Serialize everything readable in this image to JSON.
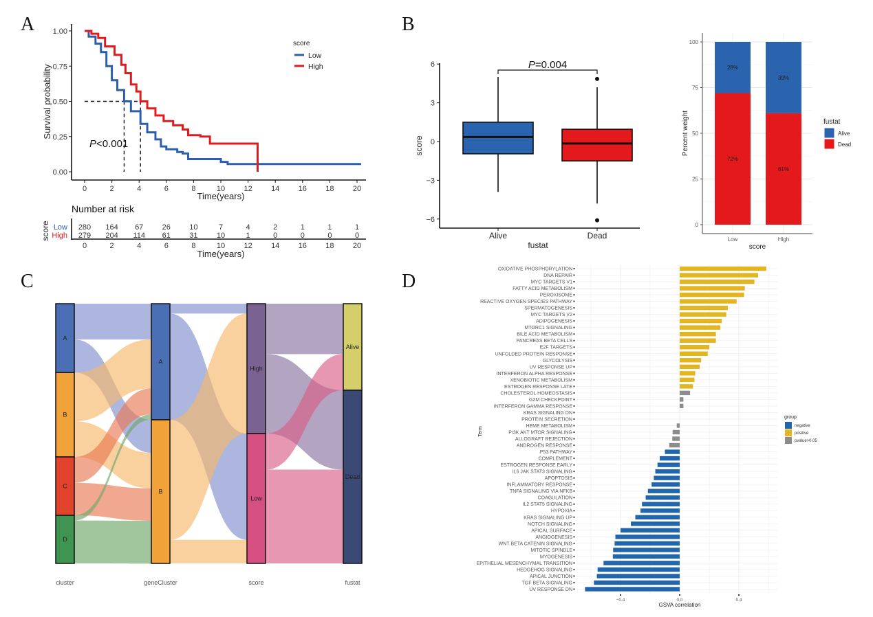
{
  "panels": {
    "a": "A",
    "b": "B",
    "c": "C",
    "d": "D"
  },
  "chart_data": [
    {
      "id": "km",
      "type": "line",
      "title": "",
      "xlabel": "Time(years)",
      "ylabel": "Survival probability",
      "xlim": [
        0,
        20
      ],
      "ylim": [
        0,
        1
      ],
      "xticks": [
        "0",
        "2",
        "4",
        "6",
        "8",
        "10",
        "12",
        "14",
        "16",
        "18",
        "20"
      ],
      "yticks": [
        "0.00",
        "0.25",
        "0.50",
        "0.75",
        "1.00"
      ],
      "legend": {
        "title": "score",
        "position": "top-right",
        "entries": [
          {
            "name": "Low",
            "color": "#2B5FAE"
          },
          {
            "name": "High",
            "color": "#E31A1C"
          }
        ]
      },
      "annotation": {
        "p_prefix": "P",
        "p_rest": "<0.001"
      },
      "median_survival": {
        "Low": 2.9,
        "High": 4.1
      },
      "series": [
        {
          "name": "Low",
          "color": "#2B5FAE",
          "x": [
            0,
            0.3,
            0.8,
            1.2,
            1.6,
            2.0,
            2.4,
            2.9,
            3.4,
            4.1,
            4.6,
            5.2,
            5.6,
            6.0,
            6.8,
            7.2,
            7.6,
            8.0,
            9.5,
            10.0,
            10.5,
            20.3
          ],
          "y": [
            1.0,
            0.96,
            0.91,
            0.85,
            0.75,
            0.65,
            0.58,
            0.5,
            0.43,
            0.34,
            0.28,
            0.23,
            0.18,
            0.16,
            0.14,
            0.13,
            0.09,
            0.09,
            0.09,
            0.07,
            0.055,
            0.055
          ]
        },
        {
          "name": "High",
          "color": "#E31A1C",
          "x": [
            0,
            0.5,
            1.0,
            1.5,
            2.2,
            2.7,
            3.0,
            3.4,
            3.8,
            4.1,
            4.6,
            5.2,
            5.8,
            6.5,
            7.2,
            7.6,
            8.5,
            9.2,
            12.7,
            12.7
          ],
          "y": [
            1.0,
            0.98,
            0.95,
            0.89,
            0.83,
            0.76,
            0.7,
            0.62,
            0.57,
            0.5,
            0.45,
            0.4,
            0.36,
            0.33,
            0.3,
            0.26,
            0.25,
            0.2,
            0.2,
            0.0
          ]
        }
      ]
    },
    {
      "id": "risk_table",
      "type": "table",
      "title": "Number at risk",
      "ylabel": "score",
      "xlabel": "Time(years)",
      "columns": [
        "0",
        "2",
        "4",
        "6",
        "8",
        "10",
        "12",
        "14",
        "16",
        "18",
        "20"
      ],
      "rows": [
        {
          "name": "Low",
          "color": "#2B5FAE",
          "values": [
            "280",
            "164",
            "67",
            "26",
            "10",
            "7",
            "4",
            "2",
            "1",
            "1",
            "1"
          ]
        },
        {
          "name": "High",
          "color": "#E31A1C",
          "values": [
            "279",
            "204",
            "114",
            "61",
            "31",
            "10",
            "1",
            "0",
            "0",
            "0",
            "0"
          ]
        }
      ]
    },
    {
      "id": "boxplot",
      "type": "bar",
      "subtype": "boxplot",
      "xlabel": "fustat",
      "ylabel": "score",
      "ylim": [
        -7,
        6.5
      ],
      "yticks": [
        "-6",
        "-3",
        "0",
        "3",
        "6"
      ],
      "categories": [
        "Alive",
        "Dead"
      ],
      "annotation": {
        "p_prefix": "P",
        "p_rest": "=0.004"
      },
      "boxes": [
        {
          "name": "Alive",
          "color": "#2B64AE",
          "whisker_low": -3.9,
          "q1": -0.95,
          "median": 0.35,
          "q3": 1.5,
          "whisker_high": 5.0,
          "outliers": []
        },
        {
          "name": "Dead",
          "color": "#E3191C",
          "whisker_low": -4.8,
          "q1": -1.5,
          "median": -0.15,
          "q3": 0.95,
          "whisker_high": 4.2,
          "outliers": [
            4.85,
            -6.1
          ]
        }
      ]
    },
    {
      "id": "stacked",
      "type": "bar",
      "subtype": "stacked-percent",
      "xlabel": "score",
      "ylabel": "Percent weight",
      "ylim": [
        0,
        100
      ],
      "yticks": [
        "0",
        "25",
        "50",
        "75",
        "100"
      ],
      "categories": [
        "Low",
        "High"
      ],
      "legend": {
        "title": "fustat",
        "position": "right"
      },
      "series": [
        {
          "name": "Dead",
          "color": "#E3191C",
          "values": [
            72,
            61
          ],
          "labels": [
            "72%",
            "61%"
          ]
        },
        {
          "name": "Alive",
          "color": "#2B64AE",
          "values": [
            28,
            39
          ],
          "labels": [
            "28%",
            "39%"
          ]
        }
      ]
    },
    {
      "id": "sankey",
      "type": "sankey",
      "axes": [
        "cluster",
        "geneCluster",
        "score",
        "fustat"
      ],
      "nodes": [
        {
          "axis": 0,
          "name": "A",
          "color": "#4A6FB5",
          "value": 0.265
        },
        {
          "axis": 0,
          "name": "B",
          "color": "#F1A33A",
          "value": 0.325
        },
        {
          "axis": 0,
          "name": "C",
          "color": "#E2432C",
          "value": 0.225
        },
        {
          "axis": 0,
          "name": "D",
          "color": "#3E9450",
          "value": 0.185
        },
        {
          "axis": 1,
          "name": "A",
          "color": "#4A6FB5",
          "value": 0.447
        },
        {
          "axis": 1,
          "name": "B",
          "color": "#F1A33A",
          "value": 0.553
        },
        {
          "axis": 2,
          "name": "High",
          "color": "#7A6393",
          "value": 0.5
        },
        {
          "axis": 2,
          "name": "Low",
          "color": "#D54F80",
          "value": 0.5
        },
        {
          "axis": 3,
          "name": "Alive",
          "color": "#D4CF6A",
          "value": 0.333
        },
        {
          "axis": 3,
          "name": "Dead",
          "color": "#3B4A74",
          "value": 0.667
        }
      ],
      "flows": [
        {
          "from": [
            0,
            "A"
          ],
          "to": [
            1,
            "A"
          ],
          "value": 0.138,
          "color": "#7F8FCC"
        },
        {
          "from": [
            0,
            "A"
          ],
          "to": [
            1,
            "B"
          ],
          "value": 0.127,
          "color": "#7F8FCC"
        },
        {
          "from": [
            0,
            "B"
          ],
          "to": [
            1,
            "A"
          ],
          "value": 0.188,
          "color": "#F6B96A"
        },
        {
          "from": [
            0,
            "B"
          ],
          "to": [
            1,
            "B"
          ],
          "value": 0.137,
          "color": "#F6B96A"
        },
        {
          "from": [
            0,
            "C"
          ],
          "to": [
            1,
            "A"
          ],
          "value": 0.1,
          "color": "#EA7A55"
        },
        {
          "from": [
            0,
            "C"
          ],
          "to": [
            1,
            "B"
          ],
          "value": 0.125,
          "color": "#EA7A55"
        },
        {
          "from": [
            0,
            "D"
          ],
          "to": [
            1,
            "A"
          ],
          "value": 0.02,
          "color": "#6FA86A"
        },
        {
          "from": [
            0,
            "D"
          ],
          "to": [
            1,
            "B"
          ],
          "value": 0.165,
          "color": "#6FA86A"
        },
        {
          "from": [
            1,
            "A"
          ],
          "to": [
            2,
            "High"
          ],
          "value": 0.038,
          "color": "#7F8FCC"
        },
        {
          "from": [
            1,
            "A"
          ],
          "to": [
            2,
            "Low"
          ],
          "value": 0.409,
          "color": "#7F8FCC"
        },
        {
          "from": [
            1,
            "B"
          ],
          "to": [
            2,
            "High"
          ],
          "value": 0.462,
          "color": "#F6B96A"
        },
        {
          "from": [
            1,
            "B"
          ],
          "to": [
            2,
            "Low"
          ],
          "value": 0.091,
          "color": "#F6B96A"
        },
        {
          "from": [
            2,
            "High"
          ],
          "to": [
            3,
            "Alive"
          ],
          "value": 0.194,
          "color": "#8B739F"
        },
        {
          "from": [
            2,
            "High"
          ],
          "to": [
            3,
            "Dead"
          ],
          "value": 0.306,
          "color": "#8B739F"
        },
        {
          "from": [
            2,
            "Low"
          ],
          "to": [
            3,
            "Alive"
          ],
          "value": 0.139,
          "color": "#D95F88"
        },
        {
          "from": [
            2,
            "Low"
          ],
          "to": [
            3,
            "Dead"
          ],
          "value": 0.361,
          "color": "#D95F88"
        }
      ]
    },
    {
      "id": "gsva",
      "type": "bar",
      "orientation": "horizontal",
      "xlabel": "GSVA correlation",
      "ylabel": "Term",
      "xlim": [
        -0.65,
        0.65
      ],
      "xticks": [
        "-0.4",
        "0.0",
        "0.4"
      ],
      "legend": {
        "title": "group",
        "position": "right",
        "entries": [
          {
            "name": "negative",
            "color": "#2166AC"
          },
          {
            "name": "positive",
            "color": "#E3B520"
          },
          {
            "name": "pvalue>0.05",
            "color": "#8C8C8C"
          }
        ]
      },
      "categories": [
        "OXIDATIVE PHOSPHORYLATION",
        "DNA REPAIR",
        "MYC TARGETS V1",
        "FATTY ACID METABOLISM",
        "PEROXISOME",
        "REACTIVE OXYGEN SPECIES PATHWAY",
        "SPERMATOGENESIS",
        "MYC TARGETS V2",
        "ADIPOGENESIS",
        "MTORC1 SIGNALING",
        "BILE ACID METABOLISM",
        "PANCREAS BETA CELLS",
        "E2F TARGETS",
        "UNFOLDED PROTEIN RESPONSE",
        "GLYCOLYSIS",
        "UV RESPONSE UP",
        "INTERFERON ALPHA RESPONSE",
        "XENOBIOTIC METABOLISM",
        "ESTROGEN RESPONSE LATE",
        "CHOLESTEROL HOMEOSTASIS",
        "G2M CHECKPOINT",
        "INTERFERON GAMMA RESPONSE",
        "KRAS SIGNALING DN",
        "PROTEIN SECRETION",
        "HEME METABOLISM",
        "PI3K AKT MTOR SIGNALING",
        "ALLOGRAFT REJECTION",
        "ANDROGEN RESPONSE",
        "P53 PATHWAY",
        "COMPLEMENT",
        "ESTROGEN RESPONSE EARLY",
        "IL6 JAK STAT3 SIGNALING",
        "APOPTOSIS",
        "INFLAMMATORY RESPONSE",
        "TNFA SIGNALING VIA NFKB",
        "COAGULATION",
        "IL2 STAT5 SIGNALING",
        "HYPOXIA",
        "KRAS SIGNALING UP",
        "NOTCH SIGNALING",
        "APICAL SURFACE",
        "ANGIOGENESIS",
        "WNT BETA CATENIN SIGNALING",
        "MITOTIC SPINDLE",
        "MYOGENESIS",
        "EPITHELIAL MESENCHYMAL TRANSITION",
        "HEDGEHOG SIGNALING",
        "APICAL JUNCTION",
        "TGF BETA SIGNALING",
        "UV RESPONSE DN"
      ],
      "values": [
        0.585,
        0.53,
        0.505,
        0.44,
        0.435,
        0.385,
        0.325,
        0.315,
        0.285,
        0.275,
        0.245,
        0.245,
        0.2,
        0.19,
        0.145,
        0.135,
        0.105,
        0.1,
        0.09,
        0.07,
        0.025,
        0.025,
        0.0,
        0.0,
        -0.02,
        -0.048,
        -0.05,
        -0.07,
        -0.1,
        -0.135,
        -0.15,
        -0.165,
        -0.175,
        -0.19,
        -0.215,
        -0.23,
        -0.255,
        -0.265,
        -0.3,
        -0.33,
        -0.4,
        -0.435,
        -0.44,
        -0.45,
        -0.452,
        -0.515,
        -0.555,
        -0.56,
        -0.58,
        -0.64
      ],
      "groups": [
        "positive",
        "positive",
        "positive",
        "positive",
        "positive",
        "positive",
        "positive",
        "positive",
        "positive",
        "positive",
        "positive",
        "positive",
        "positive",
        "positive",
        "positive",
        "positive",
        "positive",
        "positive",
        "positive",
        "pvalue>0.05",
        "pvalue>0.05",
        "pvalue>0.05",
        "pvalue>0.05",
        "pvalue>0.05",
        "pvalue>0.05",
        "pvalue>0.05",
        "pvalue>0.05",
        "pvalue>0.05",
        "negative",
        "negative",
        "negative",
        "negative",
        "negative",
        "negative",
        "negative",
        "negative",
        "negative",
        "negative",
        "negative",
        "negative",
        "negative",
        "negative",
        "negative",
        "negative",
        "negative",
        "negative",
        "negative",
        "negative",
        "negative",
        "negative"
      ]
    }
  ]
}
